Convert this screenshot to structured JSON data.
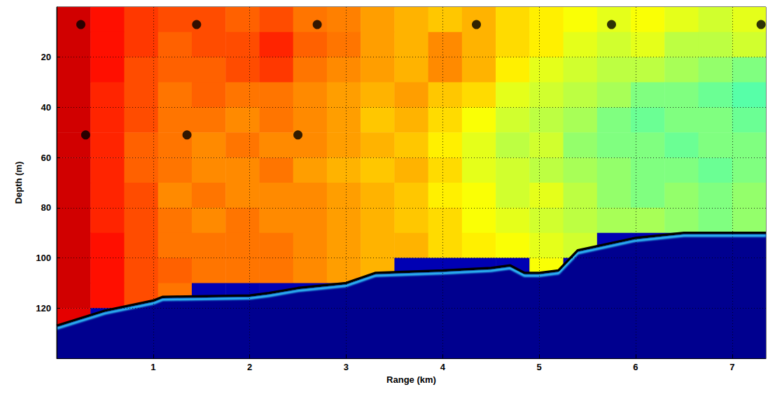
{
  "chart_data": {
    "type": "heatmap",
    "xlabel": "Range (km)",
    "ylabel": "Depth (m)",
    "xlim": [
      0,
      7.35
    ],
    "ylim": [
      0,
      140
    ],
    "xticks": [
      1,
      2,
      3,
      4,
      5,
      6,
      7
    ],
    "yticks": [
      20,
      40,
      60,
      80,
      100,
      120
    ],
    "grid": true,
    "color_range": [
      0,
      1
    ],
    "cells": {
      "x": [
        0.175,
        0.525,
        0.875,
        1.225,
        1.575,
        1.925,
        2.275,
        2.625,
        2.975,
        3.325,
        3.675,
        4.025,
        4.375,
        4.725,
        5.075,
        5.425,
        5.775,
        6.125,
        6.475,
        6.825,
        7.175
      ],
      "depth": [
        5,
        15,
        25,
        35,
        45,
        55,
        65,
        75,
        85,
        95,
        105,
        115,
        125,
        135
      ],
      "values": [
        [
          0.92,
          0.86,
          0.82,
          0.8,
          0.8,
          0.78,
          0.8,
          0.76,
          0.75,
          0.72,
          0.7,
          0.68,
          0.7,
          0.66,
          0.64,
          0.62,
          0.6,
          0.62,
          0.6,
          0.58,
          0.6
        ],
        [
          0.92,
          0.86,
          0.82,
          0.78,
          0.8,
          0.8,
          0.84,
          0.78,
          0.76,
          0.72,
          0.7,
          0.74,
          0.7,
          0.66,
          0.64,
          0.6,
          0.58,
          0.6,
          0.56,
          0.56,
          0.58
        ],
        [
          0.92,
          0.86,
          0.8,
          0.78,
          0.78,
          0.8,
          0.82,
          0.76,
          0.74,
          0.72,
          0.7,
          0.74,
          0.7,
          0.64,
          0.6,
          0.58,
          0.56,
          0.56,
          0.54,
          0.52,
          0.5
        ],
        [
          0.92,
          0.84,
          0.8,
          0.76,
          0.78,
          0.76,
          0.76,
          0.74,
          0.72,
          0.7,
          0.72,
          0.68,
          0.66,
          0.6,
          0.58,
          0.56,
          0.54,
          0.5,
          0.5,
          0.48,
          0.46
        ],
        [
          0.92,
          0.84,
          0.8,
          0.76,
          0.76,
          0.74,
          0.76,
          0.74,
          0.72,
          0.68,
          0.7,
          0.66,
          0.62,
          0.58,
          0.56,
          0.54,
          0.5,
          0.48,
          0.5,
          0.5,
          0.48
        ],
        [
          0.92,
          0.84,
          0.78,
          0.76,
          0.74,
          0.76,
          0.74,
          0.74,
          0.72,
          0.7,
          0.68,
          0.64,
          0.6,
          0.56,
          0.58,
          0.52,
          0.5,
          0.5,
          0.48,
          0.5,
          0.5
        ],
        [
          0.92,
          0.84,
          0.78,
          0.76,
          0.74,
          0.74,
          0.76,
          0.72,
          0.7,
          0.68,
          0.7,
          0.66,
          0.6,
          0.58,
          0.56,
          0.54,
          0.52,
          0.5,
          0.5,
          0.48,
          0.5
        ],
        [
          0.92,
          0.84,
          0.8,
          0.74,
          0.76,
          0.74,
          0.74,
          0.74,
          0.72,
          0.7,
          0.68,
          0.64,
          0.62,
          0.58,
          0.6,
          0.56,
          0.52,
          0.5,
          0.52,
          0.5,
          0.52
        ],
        [
          0.92,
          0.84,
          0.8,
          0.76,
          0.74,
          0.76,
          0.74,
          0.74,
          0.72,
          0.7,
          0.68,
          0.66,
          0.62,
          0.6,
          0.58,
          0.56,
          0.54,
          0.54,
          0.52,
          0.5,
          0.52
        ],
        [
          0.92,
          0.86,
          0.8,
          0.76,
          0.76,
          0.76,
          0.76,
          0.74,
          0.72,
          0.7,
          0.7,
          0.66,
          0.64,
          0.62,
          0.6,
          0.58,
          0.05,
          0.05,
          0.05,
          0.05,
          0.05
        ],
        [
          0.92,
          0.86,
          0.8,
          0.78,
          0.76,
          0.76,
          0.76,
          0.74,
          0.72,
          0.7,
          0.05,
          0.05,
          0.05,
          0.05,
          0.62,
          0.05,
          0.05,
          0.05,
          0.05,
          0.05,
          0.05
        ],
        [
          0.92,
          0.86,
          0.8,
          0.76,
          0.05,
          0.05,
          0.05,
          0.05,
          0.05,
          0.05,
          0.05,
          0.05,
          0.05,
          0.05,
          0.05,
          0.05,
          0.05,
          0.05,
          0.05,
          0.05,
          0.05
        ],
        [
          0.9,
          0.05,
          0.05,
          0.05,
          0.05,
          0.05,
          0.05,
          0.05,
          0.05,
          0.05,
          0.05,
          0.05,
          0.05,
          0.05,
          0.05,
          0.05,
          0.05,
          0.05,
          0.05,
          0.05,
          0.05
        ],
        [
          0.05,
          0.05,
          0.05,
          0.05,
          0.05,
          0.05,
          0.05,
          0.05,
          0.05,
          0.05,
          0.05,
          0.05,
          0.05,
          0.05,
          0.05,
          0.05,
          0.05,
          0.05,
          0.05,
          0.05,
          0.05
        ]
      ]
    },
    "bathymetry": {
      "color": "#000000",
      "x": [
        0,
        0.5,
        1,
        1.1,
        2,
        2.2,
        2.5,
        3,
        3.3,
        4,
        4.5,
        4.7,
        4.85,
        5,
        5.2,
        5.4,
        6,
        6.5,
        7,
        7.35
      ],
      "depth": [
        127,
        121,
        117,
        115.5,
        115,
        114,
        112,
        110,
        106,
        105,
        104,
        103,
        106,
        106,
        105,
        97,
        92,
        90,
        90,
        90
      ]
    },
    "points": {
      "color": "#000000",
      "marker": "circle",
      "x": [
        0.25,
        1.45,
        2.7,
        4.35,
        5.75,
        7.3,
        0.3,
        1.35,
        2.5
      ],
      "depth": [
        7,
        7,
        7,
        7,
        7,
        7,
        51,
        51,
        51
      ]
    }
  }
}
